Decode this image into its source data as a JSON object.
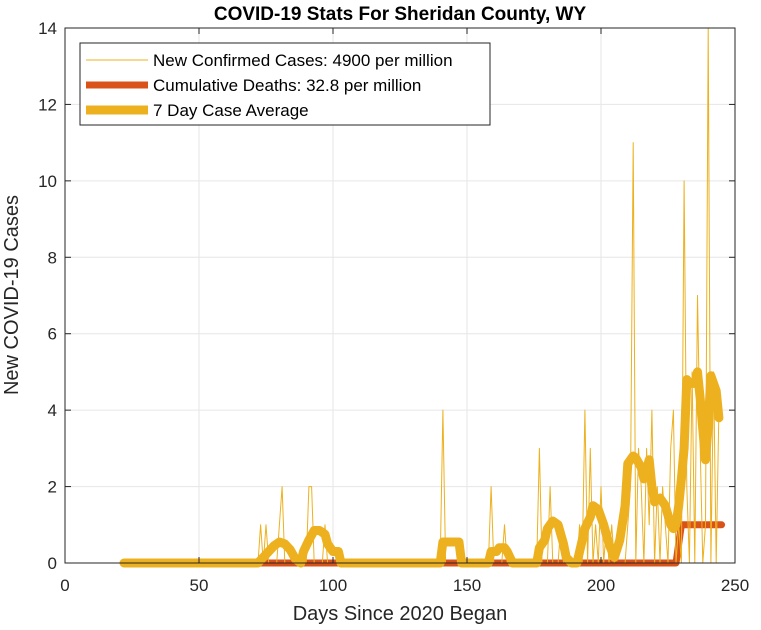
{
  "chart_data": {
    "type": "line",
    "title": "COVID-19 Stats For Sheridan County, WY",
    "xlabel": "Days Since 2020 Began",
    "ylabel": "New COVID-19 Cases",
    "xlim": [
      0,
      250
    ],
    "ylim": [
      0,
      14
    ],
    "xticks": [
      0,
      50,
      100,
      150,
      200,
      250
    ],
    "yticks": [
      0,
      2,
      4,
      6,
      8,
      10,
      12,
      14
    ],
    "grid": true,
    "legend_position": "top-left",
    "series": [
      {
        "name": "New Confirmed Cases: 4900 per million",
        "color": "#EDB120",
        "style": "thin",
        "points": [
          [
            22,
            0
          ],
          [
            72,
            0
          ],
          [
            73,
            1
          ],
          [
            74,
            0
          ],
          [
            75,
            1
          ],
          [
            76,
            0
          ],
          [
            79,
            0
          ],
          [
            80,
            1
          ],
          [
            81,
            2
          ],
          [
            82,
            0
          ],
          [
            90,
            0
          ],
          [
            91,
            2
          ],
          [
            92,
            2
          ],
          [
            93,
            0
          ],
          [
            96,
            0
          ],
          [
            97,
            1
          ],
          [
            98,
            0
          ],
          [
            140,
            0
          ],
          [
            141,
            4
          ],
          [
            142,
            0
          ],
          [
            158,
            0
          ],
          [
            159,
            2
          ],
          [
            160,
            0
          ],
          [
            163,
            0
          ],
          [
            164,
            1
          ],
          [
            165,
            0
          ],
          [
            176,
            0
          ],
          [
            177,
            3
          ],
          [
            178,
            0
          ],
          [
            180,
            0
          ],
          [
            181,
            2
          ],
          [
            182,
            0
          ],
          [
            184,
            0
          ],
          [
            185,
            1
          ],
          [
            186,
            0
          ],
          [
            191,
            0
          ],
          [
            192,
            1
          ],
          [
            193,
            0
          ],
          [
            194,
            4
          ],
          [
            195,
            0
          ],
          [
            196,
            3
          ],
          [
            197,
            0
          ],
          [
            198,
            1
          ],
          [
            199,
            0
          ],
          [
            200,
            2
          ],
          [
            201,
            0
          ],
          [
            202,
            1
          ],
          [
            203,
            0
          ],
          [
            204,
            1
          ],
          [
            205,
            0
          ],
          [
            209,
            0
          ],
          [
            210,
            1
          ],
          [
            211,
            2
          ],
          [
            212,
            11
          ],
          [
            213,
            0
          ],
          [
            214,
            3
          ],
          [
            215,
            2
          ],
          [
            216,
            0
          ],
          [
            217,
            3
          ],
          [
            218,
            1
          ],
          [
            219,
            4
          ],
          [
            220,
            0
          ],
          [
            221,
            2
          ],
          [
            222,
            0
          ],
          [
            223,
            2
          ],
          [
            224,
            1
          ],
          [
            225,
            0
          ],
          [
            226,
            3
          ],
          [
            227,
            4
          ],
          [
            228,
            0
          ],
          [
            229,
            1
          ],
          [
            230,
            0
          ],
          [
            231,
            10
          ],
          [
            232,
            2
          ],
          [
            233,
            0
          ],
          [
            234,
            5
          ],
          [
            235,
            0
          ],
          [
            236,
            7
          ],
          [
            237,
            3
          ],
          [
            238,
            0
          ],
          [
            239,
            1
          ],
          [
            240,
            14
          ],
          [
            241,
            0
          ],
          [
            242,
            5
          ],
          [
            243,
            0
          ],
          [
            244,
            4
          ],
          [
            245,
            4
          ]
        ]
      },
      {
        "name": "Cumulative Deaths: 32.8 per million",
        "color": "#D95319",
        "style": "thick",
        "points": [
          [
            22,
            0
          ],
          [
            228,
            0
          ],
          [
            230,
            1
          ],
          [
            245,
            1
          ]
        ]
      },
      {
        "name": "7 Day Case Average",
        "color": "#EDB120",
        "style": "thickest",
        "points": [
          [
            22,
            0
          ],
          [
            72,
            0
          ],
          [
            74,
            0.15
          ],
          [
            76,
            0.3
          ],
          [
            78,
            0.45
          ],
          [
            80,
            0.55
          ],
          [
            82,
            0.5
          ],
          [
            84,
            0.35
          ],
          [
            86,
            0.1
          ],
          [
            88,
            0
          ],
          [
            89,
            0.3
          ],
          [
            91,
            0.6
          ],
          [
            93,
            0.85
          ],
          [
            95,
            0.85
          ],
          [
            97,
            0.75
          ],
          [
            98,
            0.5
          ],
          [
            100,
            0.3
          ],
          [
            102,
            0.3
          ],
          [
            103,
            0
          ],
          [
            140,
            0
          ],
          [
            141,
            0.55
          ],
          [
            147,
            0.55
          ],
          [
            148,
            0
          ],
          [
            158,
            0
          ],
          [
            159,
            0.3
          ],
          [
            161,
            0.3
          ],
          [
            162,
            0.4
          ],
          [
            164,
            0.4
          ],
          [
            165,
            0.3
          ],
          [
            167,
            0
          ],
          [
            176,
            0
          ],
          [
            177,
            0.4
          ],
          [
            179,
            0.6
          ],
          [
            180,
            0.9
          ],
          [
            182,
            1.1
          ],
          [
            184,
            1.0
          ],
          [
            186,
            0.5
          ],
          [
            187,
            0.15
          ],
          [
            189,
            0
          ],
          [
            191,
            0
          ],
          [
            192,
            0.3
          ],
          [
            194,
            0.9
          ],
          [
            196,
            1.2
          ],
          [
            197,
            1.5
          ],
          [
            199,
            1.4
          ],
          [
            201,
            1.0
          ],
          [
            203,
            0.5
          ],
          [
            205,
            0.15
          ],
          [
            207,
            0.6
          ],
          [
            209,
            1.5
          ],
          [
            210,
            2.6
          ],
          [
            212,
            2.8
          ],
          [
            213,
            2.75
          ],
          [
            215,
            2.5
          ],
          [
            216,
            2.2
          ],
          [
            218,
            2.7
          ],
          [
            219,
            2.0
          ],
          [
            220,
            1.6
          ],
          [
            222,
            1.7
          ],
          [
            224,
            1.5
          ],
          [
            226,
            1.0
          ],
          [
            227,
            0.9
          ],
          [
            228,
            1.0
          ],
          [
            229,
            1.5
          ],
          [
            230,
            2.2
          ],
          [
            231,
            3.0
          ],
          [
            232,
            4.8
          ],
          [
            233,
            4.7
          ],
          [
            235,
            4.7
          ],
          [
            236,
            5.0
          ],
          [
            237,
            4.3
          ],
          [
            238,
            3.5
          ],
          [
            239,
            2.7
          ],
          [
            240,
            3.6
          ],
          [
            241,
            4.9
          ],
          [
            243,
            4.5
          ],
          [
            244,
            3.8
          ]
        ]
      }
    ]
  }
}
